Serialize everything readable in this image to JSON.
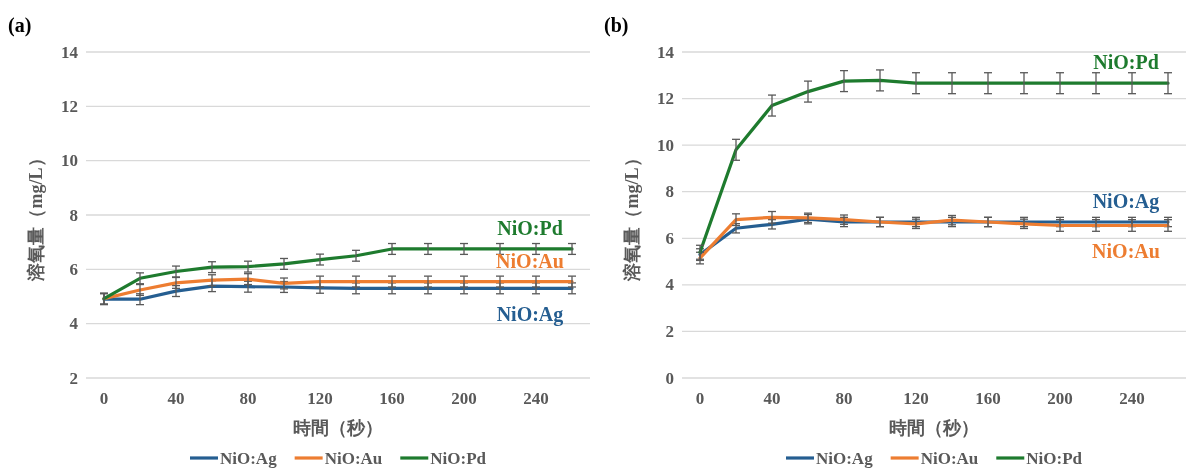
{
  "chart_data": [
    {
      "type": "line",
      "title": "(a)",
      "xlabel": "時間（秒）",
      "ylabel": "溶氧量（mg/L）",
      "x": [
        0,
        20,
        40,
        60,
        80,
        100,
        120,
        140,
        160,
        180,
        200,
        220,
        240,
        260
      ],
      "xlim": [
        -10,
        270
      ],
      "xticks": [
        0,
        40,
        80,
        120,
        160,
        200,
        240
      ],
      "ylim": [
        2,
        14
      ],
      "yticks": [
        2,
        4,
        6,
        8,
        10,
        12,
        14
      ],
      "grid": "y",
      "legend": "bottom",
      "series": [
        {
          "name": "NiO:Ag",
          "color": "#255e91",
          "values": [
            4.9,
            4.9,
            5.2,
            5.38,
            5.36,
            5.35,
            5.32,
            5.3,
            5.3,
            5.3,
            5.3,
            5.3,
            5.3,
            5.3
          ],
          "errors": [
            0.2,
            0.2,
            0.2,
            0.2,
            0.2,
            0.2,
            0.2,
            0.2,
            0.2,
            0.2,
            0.2,
            0.2,
            0.2,
            0.2
          ]
        },
        {
          "name": "NiO:Au",
          "color": "#ed7d31",
          "values": [
            4.92,
            5.24,
            5.5,
            5.6,
            5.64,
            5.48,
            5.55,
            5.55,
            5.55,
            5.55,
            5.55,
            5.55,
            5.55,
            5.55
          ],
          "errors": [
            0.2,
            0.2,
            0.2,
            0.2,
            0.2,
            0.2,
            0.2,
            0.2,
            0.2,
            0.2,
            0.2,
            0.2,
            0.2,
            0.2
          ]
        },
        {
          "name": "NiO:Pd",
          "color": "#1e7b2e",
          "values": [
            4.92,
            5.67,
            5.92,
            6.08,
            6.1,
            6.2,
            6.36,
            6.5,
            6.75,
            6.75,
            6.75,
            6.75,
            6.75,
            6.75
          ],
          "errors": [
            0.2,
            0.2,
            0.2,
            0.2,
            0.2,
            0.2,
            0.2,
            0.2,
            0.2,
            0.2,
            0.2,
            0.2,
            0.2,
            0.2
          ]
        }
      ]
    },
    {
      "type": "line",
      "title": "(b)",
      "xlabel": "時間（秒）",
      "ylabel": "溶氧量（mg/L）",
      "x": [
        0,
        20,
        40,
        60,
        80,
        100,
        120,
        140,
        160,
        180,
        200,
        220,
        240,
        260
      ],
      "xlim": [
        -10,
        270
      ],
      "xticks": [
        0,
        40,
        80,
        120,
        160,
        200,
        240
      ],
      "ylim": [
        0,
        14
      ],
      "yticks": [
        0,
        2,
        4,
        6,
        8,
        10,
        12,
        14
      ],
      "grid": "y",
      "legend": "bottom",
      "series": [
        {
          "name": "NiO:Ag",
          "color": "#255e91",
          "values": [
            5.3,
            6.43,
            6.6,
            6.82,
            6.7,
            6.7,
            6.7,
            6.7,
            6.7,
            6.7,
            6.7,
            6.7,
            6.7,
            6.7
          ],
          "errors": [
            0.25,
            0.2,
            0.2,
            0.2,
            0.2,
            0.2,
            0.2,
            0.2,
            0.2,
            0.2,
            0.2,
            0.2,
            0.2,
            0.2
          ]
        },
        {
          "name": "NiO:Au",
          "color": "#ed7d31",
          "values": [
            5.15,
            6.8,
            6.9,
            6.88,
            6.8,
            6.7,
            6.62,
            6.78,
            6.7,
            6.62,
            6.55,
            6.55,
            6.55,
            6.55
          ],
          "errors": [
            0.25,
            0.25,
            0.25,
            0.2,
            0.2,
            0.2,
            0.2,
            0.2,
            0.2,
            0.2,
            0.25,
            0.25,
            0.25,
            0.25
          ]
        },
        {
          "name": "NiO:Pd",
          "color": "#1e7b2e",
          "values": [
            5.4,
            9.8,
            11.7,
            12.3,
            12.75,
            12.78,
            12.66,
            12.66,
            12.66,
            12.66,
            12.66,
            12.66,
            12.66,
            12.66
          ],
          "errors": [
            0.3,
            0.45,
            0.45,
            0.45,
            0.45,
            0.45,
            0.45,
            0.45,
            0.45,
            0.45,
            0.45,
            0.45,
            0.45,
            0.45
          ]
        }
      ]
    }
  ]
}
